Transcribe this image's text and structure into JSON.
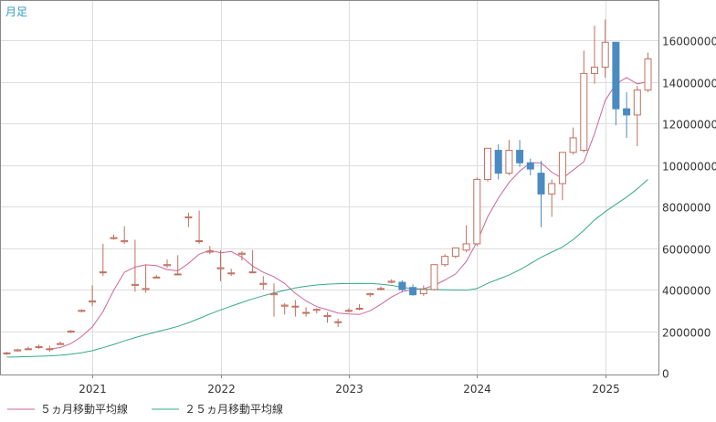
{
  "chart_data": {
    "type": "candlestick",
    "title": "月足",
    "x_ticks": [
      "2021",
      "2022",
      "2023",
      "2024",
      "2025"
    ],
    "y_ticks": [
      "0",
      "2000000",
      "4000000",
      "6000000",
      "8000000",
      "10000000",
      "12000000",
      "14000000",
      "16000000"
    ],
    "ylim": [
      0,
      17500000
    ],
    "grid": true,
    "legend_position": "bottom-left",
    "candles": [
      {
        "date": "2020-05",
        "open": 950000,
        "high": 1000000,
        "low": 850000,
        "close": 950000,
        "dir": "up"
      },
      {
        "date": "2020-06",
        "open": 1050000,
        "high": 1150000,
        "low": 1000000,
        "close": 1100000,
        "dir": "up"
      },
      {
        "date": "2020-07",
        "open": 1150000,
        "high": 1250000,
        "low": 1100000,
        "close": 1150000,
        "dir": "up"
      },
      {
        "date": "2020-08",
        "open": 1250000,
        "high": 1350000,
        "low": 1150000,
        "close": 1250000,
        "dir": "up"
      },
      {
        "date": "2020-09",
        "open": 1150000,
        "high": 1300000,
        "low": 1000000,
        "close": 1150000,
        "dir": "up"
      },
      {
        "date": "2020-10",
        "open": 1400000,
        "high": 1500000,
        "low": 1350000,
        "close": 1400000,
        "dir": "up"
      },
      {
        "date": "2020-11",
        "open": 1950000,
        "high": 2050000,
        "low": 1900000,
        "close": 2000000,
        "dir": "up"
      },
      {
        "date": "2020-12",
        "open": 2950000,
        "high": 3050000,
        "low": 2900000,
        "close": 3000000,
        "dir": "up"
      },
      {
        "date": "2021-01",
        "open": 3400000,
        "high": 4200000,
        "low": 3200000,
        "close": 3450000,
        "dir": "up"
      },
      {
        "date": "2021-02",
        "open": 4850000,
        "high": 6200000,
        "low": 4650000,
        "close": 4850000,
        "dir": "up"
      },
      {
        "date": "2021-03",
        "open": 6450000,
        "high": 6650000,
        "low": 6400000,
        "close": 6500000,
        "dir": "up"
      },
      {
        "date": "2021-04",
        "open": 6300000,
        "high": 7050000,
        "low": 6200000,
        "close": 6350000,
        "dir": "up"
      },
      {
        "date": "2021-05",
        "open": 4200000,
        "high": 6400000,
        "low": 3900000,
        "close": 4250000,
        "dir": "up"
      },
      {
        "date": "2021-06",
        "open": 4000000,
        "high": 5200000,
        "low": 3850000,
        "close": 4050000,
        "dir": "up"
      },
      {
        "date": "2021-07",
        "open": 4600000,
        "high": 4700000,
        "low": 4550000,
        "close": 4600000,
        "dir": "up"
      },
      {
        "date": "2021-08",
        "open": 5150000,
        "high": 5450000,
        "low": 5050000,
        "close": 5200000,
        "dir": "up"
      },
      {
        "date": "2021-09",
        "open": 4750000,
        "high": 5650000,
        "low": 4700000,
        "close": 4750000,
        "dir": "up"
      },
      {
        "date": "2021-10",
        "open": 7450000,
        "high": 7700000,
        "low": 7000000,
        "close": 7500000,
        "dir": "up"
      },
      {
        "date": "2021-11",
        "open": 6350000,
        "high": 7800000,
        "low": 6200000,
        "close": 6350000,
        "dir": "up"
      },
      {
        "date": "2021-12",
        "open": 5800000,
        "high": 6100000,
        "low": 5700000,
        "close": 5850000,
        "dir": "up"
      },
      {
        "date": "2022-01",
        "open": 5000000,
        "high": 5900000,
        "low": 4400000,
        "close": 5050000,
        "dir": "up"
      },
      {
        "date": "2022-02",
        "open": 4800000,
        "high": 5000000,
        "low": 4650000,
        "close": 4800000,
        "dir": "up"
      },
      {
        "date": "2022-03",
        "open": 5700000,
        "high": 5850000,
        "low": 5400000,
        "close": 5750000,
        "dir": "up"
      },
      {
        "date": "2022-04",
        "open": 4850000,
        "high": 5900000,
        "low": 4800000,
        "close": 4850000,
        "dir": "up"
      },
      {
        "date": "2022-05",
        "open": 4250000,
        "high": 4650000,
        "low": 4000000,
        "close": 4300000,
        "dir": "up"
      },
      {
        "date": "2022-06",
        "open": 3750000,
        "high": 4300000,
        "low": 2700000,
        "close": 3800000,
        "dir": "up"
      },
      {
        "date": "2022-07",
        "open": 3200000,
        "high": 3350000,
        "low": 2800000,
        "close": 3250000,
        "dir": "up"
      },
      {
        "date": "2022-08",
        "open": 3200000,
        "high": 3500000,
        "low": 2700000,
        "close": 3200000,
        "dir": "up"
      },
      {
        "date": "2022-09",
        "open": 2900000,
        "high": 3150000,
        "low": 2700000,
        "close": 2900000,
        "dir": "up"
      },
      {
        "date": "2022-10",
        "open": 3000000,
        "high": 3100000,
        "low": 2850000,
        "close": 3050000,
        "dir": "up"
      },
      {
        "date": "2022-11",
        "open": 2700000,
        "high": 2900000,
        "low": 2400000,
        "close": 2750000,
        "dir": "up"
      },
      {
        "date": "2022-12",
        "open": 2450000,
        "high": 2600000,
        "low": 2200000,
        "close": 2450000,
        "dir": "up"
      },
      {
        "date": "2023-01",
        "open": 2950000,
        "high": 3100000,
        "low": 2900000,
        "close": 3000000,
        "dir": "up"
      },
      {
        "date": "2023-02",
        "open": 3100000,
        "high": 3300000,
        "low": 3000000,
        "close": 3100000,
        "dir": "up"
      },
      {
        "date": "2023-03",
        "open": 3750000,
        "high": 3850000,
        "low": 3650000,
        "close": 3800000,
        "dir": "up"
      },
      {
        "date": "2023-04",
        "open": 4050000,
        "high": 4150000,
        "low": 3950000,
        "close": 4050000,
        "dir": "up"
      },
      {
        "date": "2023-05",
        "open": 4350000,
        "high": 4500000,
        "low": 4300000,
        "close": 4400000,
        "dir": "up"
      },
      {
        "date": "2023-06",
        "open": 4350000,
        "high": 4450000,
        "low": 3900000,
        "close": 4000000,
        "dir": "down"
      },
      {
        "date": "2023-07",
        "open": 4100000,
        "high": 4250000,
        "low": 3700000,
        "close": 3750000,
        "dir": "down"
      },
      {
        "date": "2023-08",
        "open": 3800000,
        "high": 4200000,
        "low": 3700000,
        "close": 4000000,
        "dir": "up"
      },
      {
        "date": "2023-09",
        "open": 4000000,
        "high": 5200000,
        "low": 3950000,
        "close": 5200000,
        "dir": "up"
      },
      {
        "date": "2023-10",
        "open": 5200000,
        "high": 5700000,
        "low": 5100000,
        "close": 5600000,
        "dir": "up"
      },
      {
        "date": "2023-11",
        "open": 5600000,
        "high": 6000000,
        "low": 5500000,
        "close": 6000000,
        "dir": "up"
      },
      {
        "date": "2023-12",
        "open": 5900000,
        "high": 7100000,
        "low": 5800000,
        "close": 6200000,
        "dir": "up"
      },
      {
        "date": "2024-01",
        "open": 6200000,
        "high": 9400000,
        "low": 6100000,
        "close": 9300000,
        "dir": "up"
      },
      {
        "date": "2024-02",
        "open": 9300000,
        "high": 10800000,
        "low": 9200000,
        "close": 10800000,
        "dir": "up"
      },
      {
        "date": "2024-03",
        "open": 10700000,
        "high": 11000000,
        "low": 9300000,
        "close": 9600000,
        "dir": "down"
      },
      {
        "date": "2024-04",
        "open": 9600000,
        "high": 11200000,
        "low": 9500000,
        "close": 10700000,
        "dir": "up"
      },
      {
        "date": "2024-05",
        "open": 10700000,
        "high": 11200000,
        "low": 9900000,
        "close": 10100000,
        "dir": "down"
      },
      {
        "date": "2024-06",
        "open": 10100000,
        "high": 10300000,
        "low": 9500000,
        "close": 9800000,
        "dir": "down"
      },
      {
        "date": "2024-07",
        "open": 9600000,
        "high": 10200000,
        "low": 7000000,
        "close": 8600000,
        "dir": "down"
      },
      {
        "date": "2024-08",
        "open": 8600000,
        "high": 9300000,
        "low": 7500000,
        "close": 9100000,
        "dir": "up"
      },
      {
        "date": "2024-09",
        "open": 9100000,
        "high": 10600000,
        "low": 8300000,
        "close": 10600000,
        "dir": "up"
      },
      {
        "date": "2024-10",
        "open": 10600000,
        "high": 11800000,
        "low": 10500000,
        "close": 11300000,
        "dir": "up"
      },
      {
        "date": "2024-11",
        "open": 10700000,
        "high": 15500000,
        "low": 10600000,
        "close": 14400000,
        "dir": "up"
      },
      {
        "date": "2024-12",
        "open": 14400000,
        "high": 16700000,
        "low": 13900000,
        "close": 14700000,
        "dir": "up"
      },
      {
        "date": "2025-01",
        "open": 14700000,
        "high": 17000000,
        "low": 14200000,
        "close": 15900000,
        "dir": "up"
      },
      {
        "date": "2025-02",
        "open": 15900000,
        "high": 15900000,
        "low": 11900000,
        "close": 12700000,
        "dir": "down"
      },
      {
        "date": "2025-03",
        "open": 12700000,
        "high": 13500000,
        "low": 11300000,
        "close": 12400000,
        "dir": "down"
      },
      {
        "date": "2025-04",
        "open": 12400000,
        "high": 13800000,
        "low": 10900000,
        "close": 13600000,
        "dir": "up"
      },
      {
        "date": "2025-05",
        "open": 13600000,
        "high": 15400000,
        "low": 13500000,
        "close": 15100000,
        "dir": "up"
      }
    ],
    "series": [
      {
        "name": "５ヵ月移動平均線",
        "color": "#cc6699",
        "values": [
          null,
          null,
          null,
          null,
          1140000,
          1210000,
          1400000,
          1740000,
          2200000,
          2940000,
          3960000,
          4830000,
          5080000,
          5190000,
          5150000,
          4960000,
          4900000,
          5260000,
          5700000,
          5890000,
          5770000,
          5830000,
          5560000,
          5130000,
          4830000,
          4620000,
          4290000,
          3820000,
          3450000,
          3180000,
          3030000,
          2870000,
          2820000,
          2800000,
          2980000,
          3290000,
          3640000,
          3900000,
          4000000,
          4040000,
          4200000,
          4460000,
          4750000,
          5350000,
          6300000,
          7500000,
          8400000,
          9150000,
          9700000,
          10100000,
          10100000,
          9650000,
          9350000,
          9750000,
          10150000,
          11500000,
          13100000,
          13900000,
          14200000,
          13900000,
          14000000
        ]
      },
      {
        "name": "２５ヵ月移動平均線",
        "color": "#33aa88",
        "values": [
          750000,
          760000,
          775000,
          790000,
          810000,
          840000,
          890000,
          960000,
          1060000,
          1200000,
          1360000,
          1530000,
          1690000,
          1830000,
          1960000,
          2090000,
          2230000,
          2400000,
          2610000,
          2820000,
          3020000,
          3200000,
          3380000,
          3550000,
          3700000,
          3840000,
          3960000,
          4080000,
          4160000,
          4220000,
          4260000,
          4280000,
          4290000,
          4300000,
          4290000,
          4260000,
          4200000,
          4100000,
          4050000,
          4020000,
          4000000,
          3990000,
          3980000,
          3970000,
          4050000,
          4300000,
          4500000,
          4700000,
          4950000,
          5250000,
          5550000,
          5800000,
          6050000,
          6400000,
          6850000,
          7350000,
          7750000,
          8100000,
          8450000,
          8850000,
          9300000
        ]
      }
    ]
  }
}
